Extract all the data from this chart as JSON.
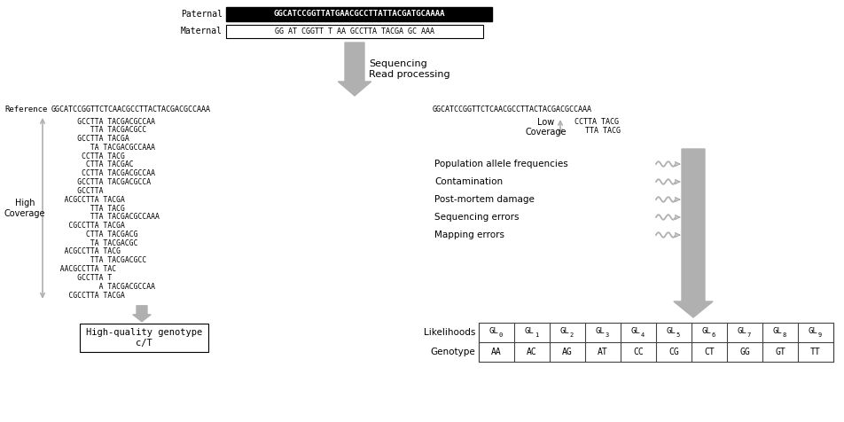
{
  "paternal_label": "Paternal",
  "paternal_seq": "GGCATCCGGTTATGAACGCCTTATTACGATGCAAAA",
  "maternal_label": "Maternal",
  "maternal_seq": "GG AT CGGTT T AA GCCTTA TACGA GC AAA",
  "seq_read_label": "Sequencing\nRead processing",
  "reference_label": "Reference",
  "reference_seq": "GGCATCCGGTTCTCAACGCCTTACTACGACGCCAAA",
  "high_coverage_reads": [
    "      GCCTTA TACGACGCCAA",
    "         TTA TACGACGCC",
    "      GCCTTA TACGA",
    "         TA TACGACGCCAAA",
    "       CCTTA TACG",
    "        CTTA TACGAC",
    "       CCTTA TACGACGCCAA",
    "      GCCTTA TACGACGCCA",
    "      GCCTTA",
    "   ACGCCTTA TACGA",
    "         TTA TACG",
    "         TTA TACGACGCCAAA",
    "    CGCCTTA TACGA",
    "        CTTA TACGACG",
    "         TA TACGACGC",
    "   ACGCCTTA TACG",
    "         TTA TACGACGCC",
    "  AACGCCTTA TAC",
    "      GCCTTA T",
    "           A TACGACGCCAA",
    "    CGCCTTA TACGA"
  ],
  "high_coverage_label": "High\nCoverage",
  "high_quality_label": "High-quality genotype\nc/T",
  "ref_seq_right": "GGCATCCGGTTCTCAACGCCTTACTACGACGCCAAA",
  "low_coverage_label": "Low\nCoverage",
  "low_coverage_reads_line1": "CCTTA TACG",
  "low_coverage_reads_line2": "TTA TACG",
  "factors_label": [
    "Population allele frequencies",
    "Contamination",
    "Post-mortem damage",
    "Sequencing errors",
    "Mapping errors"
  ],
  "genotype_row": [
    "AA",
    "AC",
    "AG",
    "AT",
    "CC",
    "CG",
    "CT",
    "GG",
    "GT",
    "TT"
  ],
  "likelihood_subs": [
    "0",
    "1",
    "2",
    "3",
    "4",
    "5",
    "6",
    "7",
    "8",
    "9"
  ],
  "genotype_label": "Genotype",
  "likelihoods_label": "Likelihoods",
  "bg_color": "#ffffff",
  "text_color": "#000000",
  "arrow_color": "#b0b0b0",
  "table_border_color": "#444444"
}
